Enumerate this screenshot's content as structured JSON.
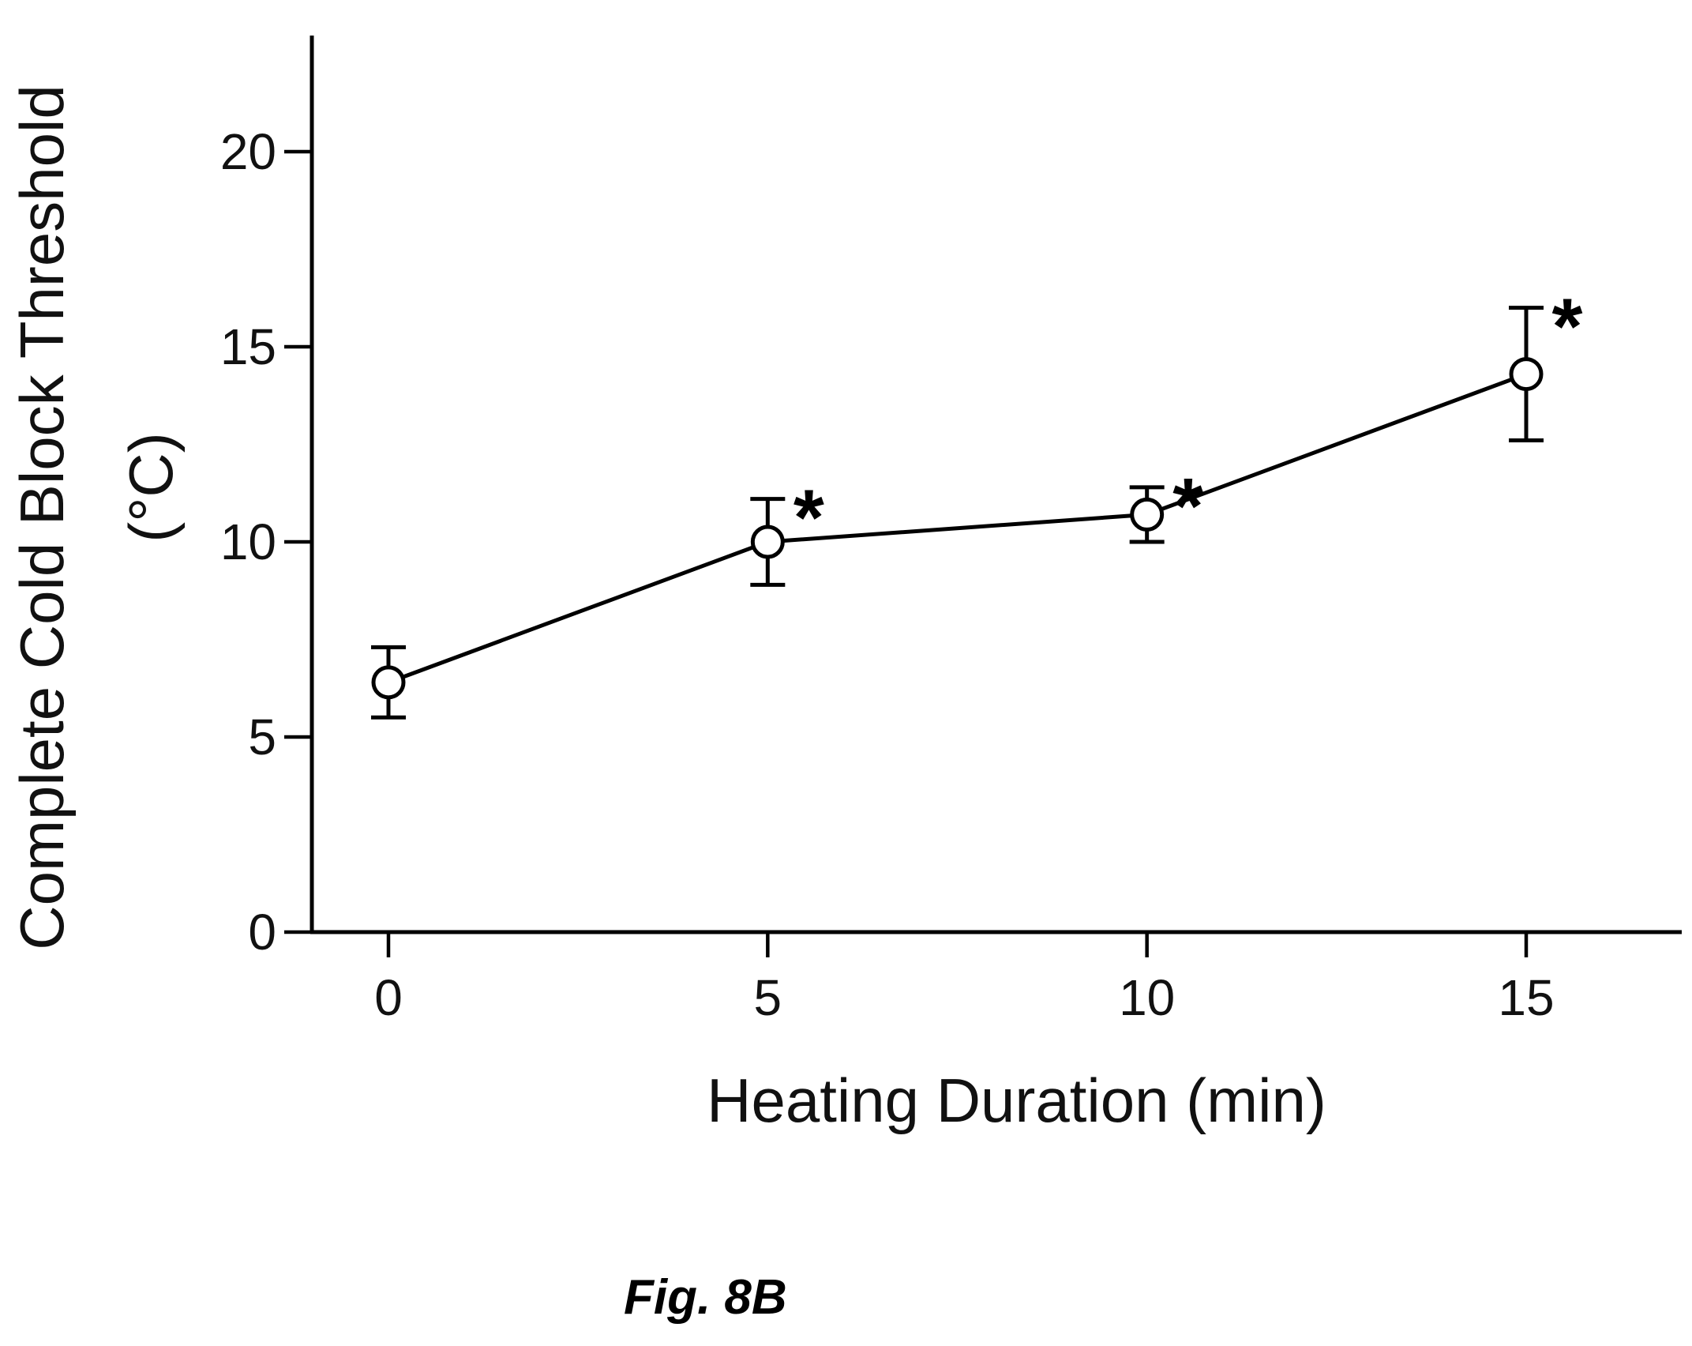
{
  "chart_data": {
    "type": "line",
    "xlabel": "Heating Duration (min)",
    "ylabel_line1": "Complete Cold Block Threshold",
    "ylabel_line2": "(°C)",
    "xlim": [
      -2,
      17.5
    ],
    "ylim": [
      0,
      23
    ],
    "x_ticks": [
      0,
      5,
      10,
      15
    ],
    "y_ticks": [
      0,
      5,
      10,
      15,
      20
    ],
    "grid": false,
    "series": [
      {
        "marker": "open-circle",
        "color": "#000000",
        "points": [
          {
            "x": 0,
            "y": 6.4,
            "err_low": 5.5,
            "err_high": 7.3,
            "significant": false
          },
          {
            "x": 5,
            "y": 10.0,
            "err_low": 8.9,
            "err_high": 11.1,
            "significant": true
          },
          {
            "x": 10,
            "y": 10.7,
            "err_low": 10.0,
            "err_high": 11.4,
            "significant": true
          },
          {
            "x": 15,
            "y": 14.3,
            "err_low": 12.6,
            "err_high": 16.0,
            "significant": true
          }
        ]
      }
    ],
    "significance_marker": "*"
  },
  "figure_caption": "Fig. 8B"
}
